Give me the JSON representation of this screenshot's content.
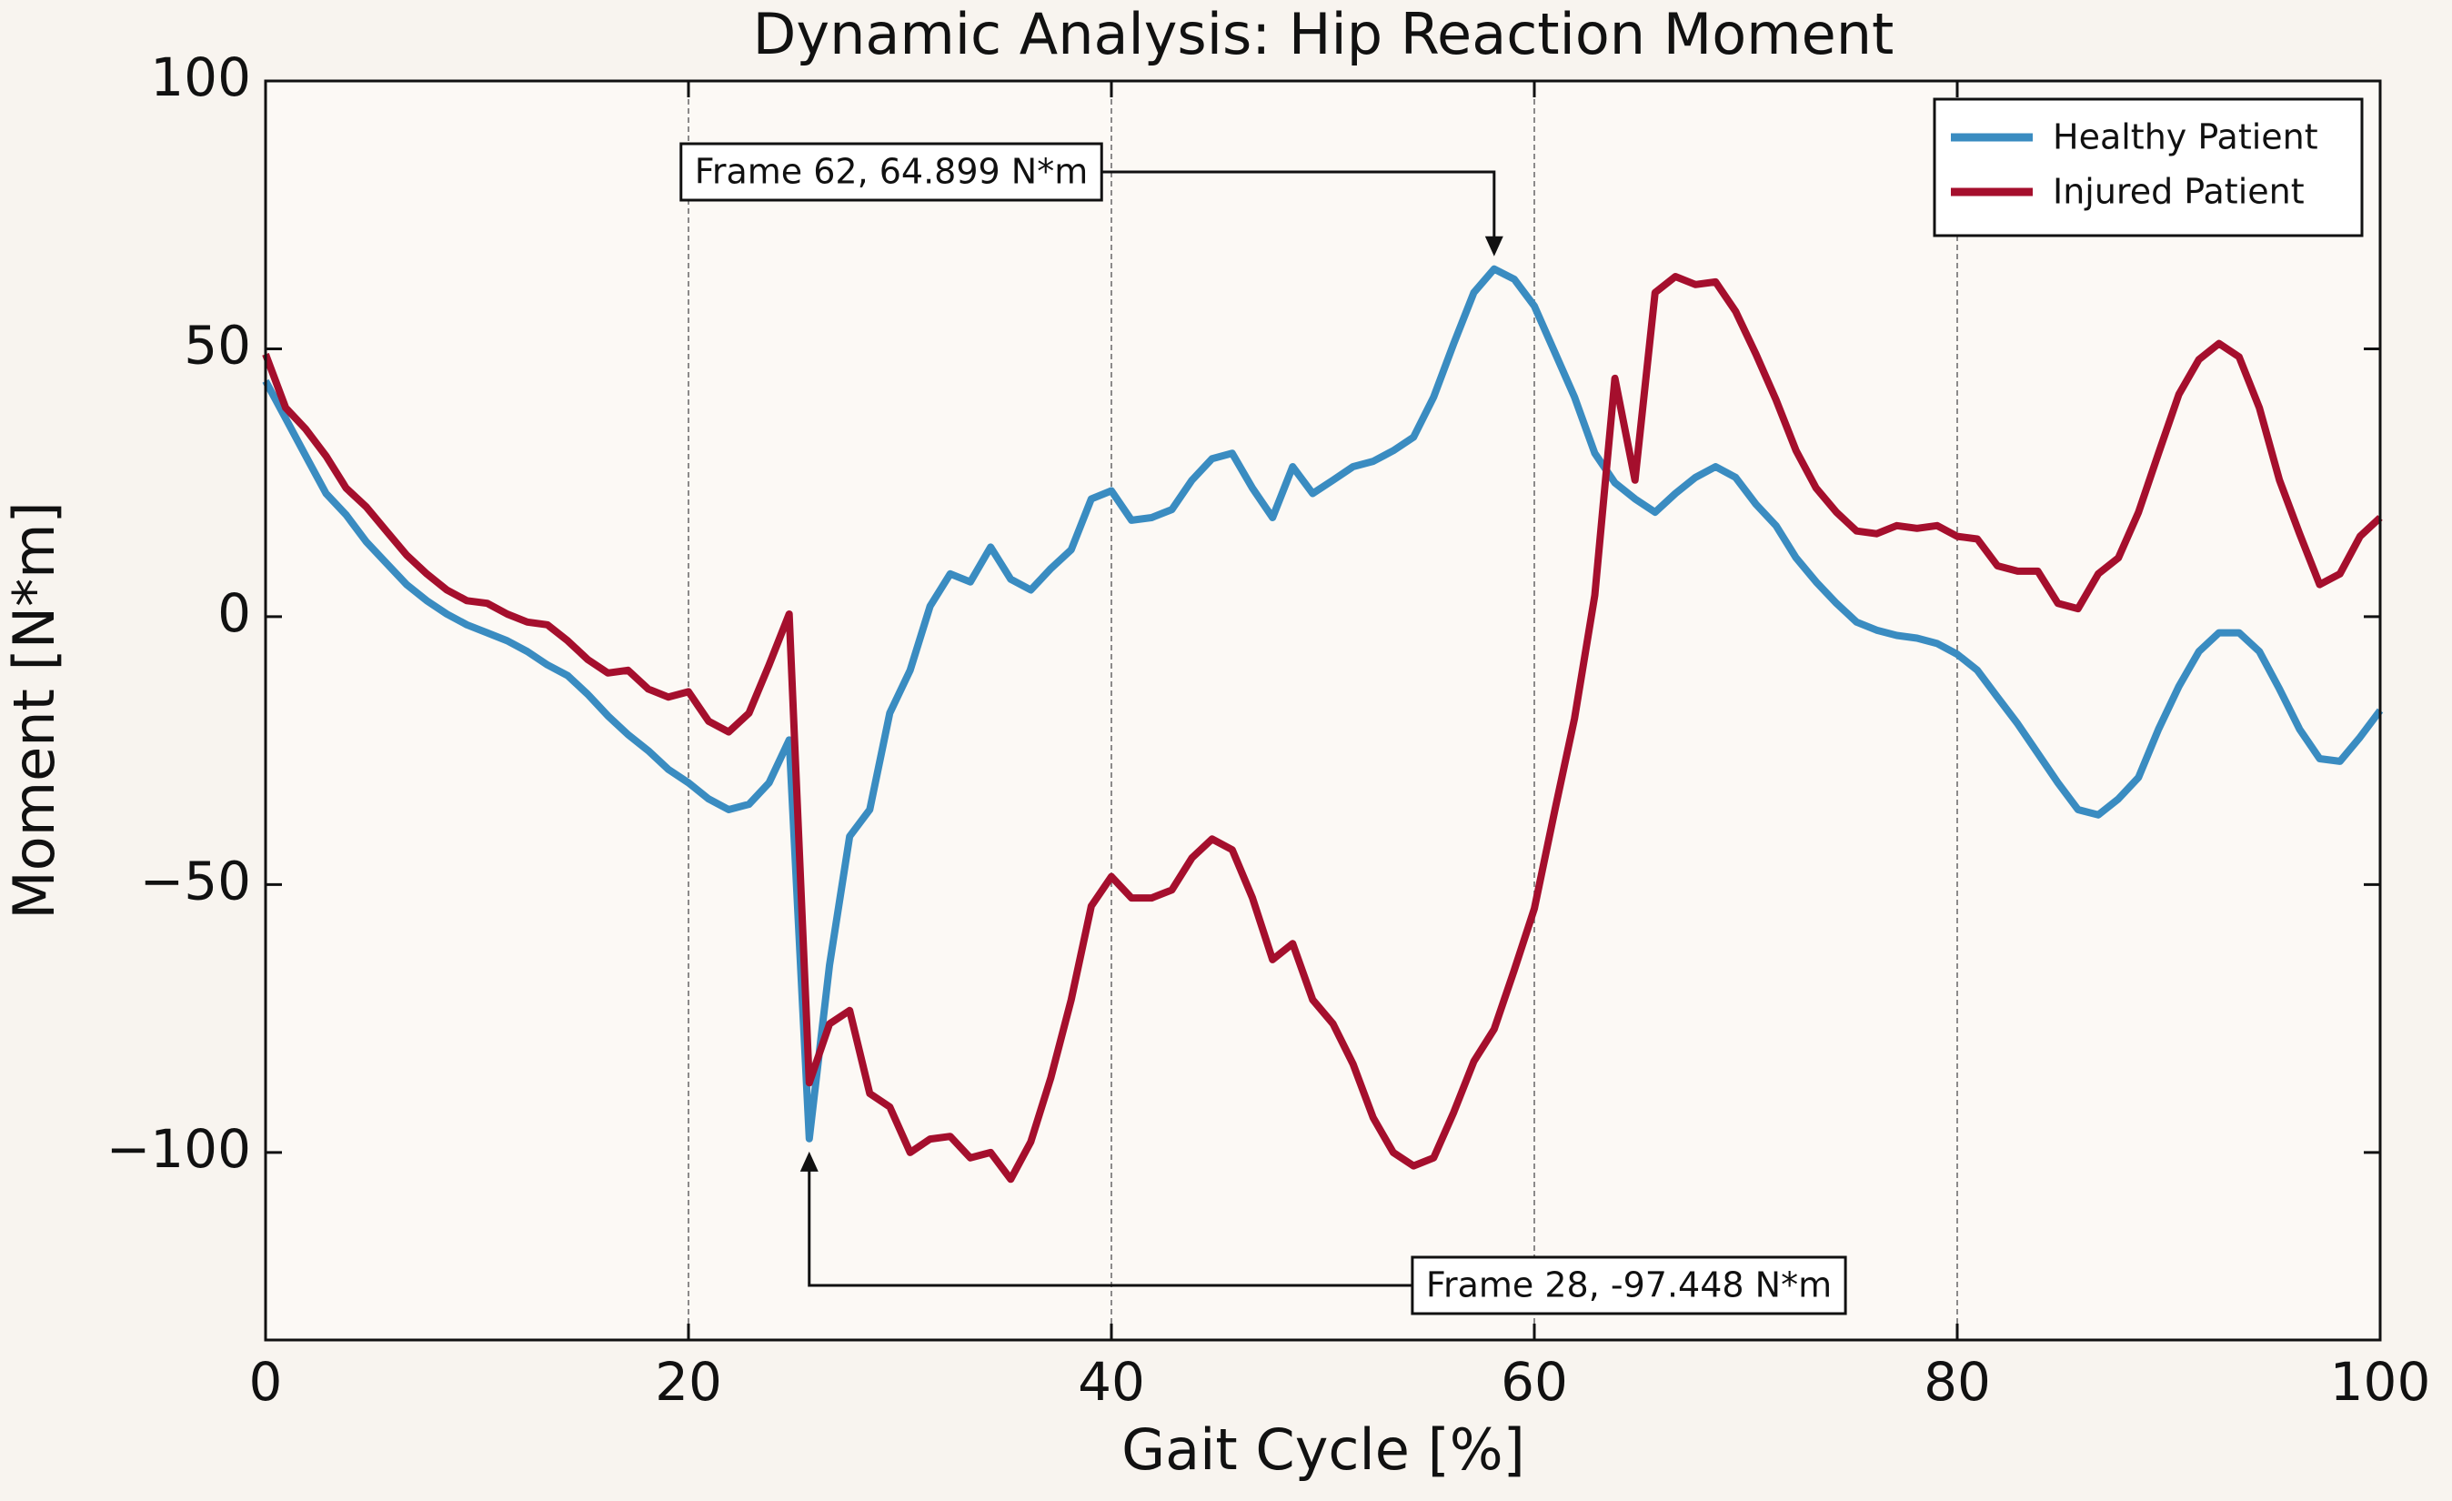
{
  "chart_data": {
    "type": "line",
    "title": "Dynamic Analysis: Hip Reaction Moment",
    "xlabel": "Gait Cycle [%]",
    "ylabel": "Moment [N*m]",
    "x": [
      0,
      0.95,
      1.9,
      2.86,
      3.81,
      4.76,
      5.71,
      6.67,
      7.62,
      8.57,
      9.52,
      10.48,
      11.43,
      12.38,
      13.33,
      14.29,
      15.24,
      16.19,
      17.14,
      18.1,
      19.05,
      20,
      20.95,
      21.9,
      22.86,
      23.81,
      24.76,
      25.71,
      26.67,
      27.62,
      28.57,
      29.52,
      30.48,
      31.43,
      32.38,
      33.33,
      34.29,
      35.24,
      36.19,
      37.14,
      38.1,
      39.05,
      40,
      40.95,
      41.9,
      42.86,
      43.81,
      44.76,
      45.71,
      46.67,
      47.62,
      48.57,
      49.52,
      50.48,
      51.43,
      52.38,
      53.33,
      54.29,
      55.24,
      56.19,
      57.14,
      58.1,
      59.05,
      60,
      60.95,
      61.9,
      62.86,
      63.81,
      64.76,
      65.71,
      66.67,
      67.62,
      68.57,
      69.52,
      70.48,
      71.43,
      72.38,
      73.33,
      74.29,
      75.24,
      76.19,
      77.14,
      78.1,
      79.05,
      80,
      80.95,
      81.9,
      82.86,
      83.81,
      84.76,
      85.71,
      86.67,
      87.62,
      88.57,
      89.52,
      90.48,
      91.43,
      92.38,
      93.33,
      94.29,
      95.24,
      96.19,
      97.14,
      98.1,
      99.05,
      100
    ],
    "series": [
      {
        "name": "Healthy Patient",
        "color": "#3a8cc1",
        "values": [
          44,
          37,
          30,
          23,
          19,
          14,
          10,
          6,
          3,
          0.5,
          -1.5,
          -3,
          -4.5,
          -6.5,
          -9,
          -11,
          -14.5,
          -18.5,
          -22,
          -25,
          -28.5,
          -31,
          -34,
          -36,
          -35,
          -31,
          -23,
          -97.448,
          -65,
          -41,
          -36,
          -18,
          -10,
          2,
          8,
          6.5,
          13,
          7,
          5,
          9,
          12.5,
          22,
          23.5,
          18,
          18.5,
          20,
          25.5,
          29.5,
          30.5,
          24,
          18.5,
          28,
          23,
          25.5,
          28,
          29,
          31,
          33.5,
          41,
          51,
          60.5,
          64.899,
          63,
          58,
          49.5,
          41,
          30.5,
          25,
          22,
          19.5,
          23,
          26,
          28,
          26,
          21,
          17,
          11,
          6.5,
          2.5,
          -1,
          -2.5,
          -3.5,
          -4,
          -5,
          -7,
          -10,
          -15,
          -20,
          -25.5,
          -31,
          -36,
          -37,
          -34,
          -30,
          -21,
          -13,
          -6.5,
          -3,
          -3,
          -6.5,
          -13.5,
          -21,
          -26.5,
          -27,
          -22.5,
          -17.5
        ]
      },
      {
        "name": "Injured Patient",
        "color": "#a50f2d",
        "values": [
          49,
          39,
          35,
          30,
          24,
          20.5,
          16,
          11.5,
          8,
          5,
          3,
          2.5,
          0.5,
          -1,
          -1.5,
          -4.5,
          -8,
          -10.5,
          -10,
          -13.5,
          -15,
          -14,
          -19.5,
          -21.5,
          -18,
          -9,
          0.5,
          -87,
          -76,
          -73.5,
          -89,
          -91.5,
          -100,
          -97.5,
          -97,
          -101,
          -100,
          -105,
          -98,
          -86,
          -71.5,
          -54,
          -48.5,
          -52.5,
          -52.5,
          -51,
          -45,
          -41.5,
          -43.5,
          -52.5,
          -64,
          -61,
          -71.5,
          -76,
          -83.5,
          -93.5,
          -100,
          -102.5,
          -101,
          -92.5,
          -83,
          -77,
          -66,
          -54.5,
          -36.5,
          -19,
          4,
          44.5,
          25.5,
          60.5,
          63.5,
          62,
          62.5,
          57,
          49,
          40.5,
          31,
          24,
          19.5,
          16,
          15.5,
          17,
          16.5,
          17,
          15,
          14.5,
          9.5,
          8.5,
          8.5,
          2.5,
          1.5,
          8,
          11,
          19.5,
          30.5,
          41.5,
          48,
          51,
          48.5,
          39,
          25.5,
          15.5,
          6,
          8,
          15,
          18.5
        ]
      }
    ],
    "xlim": [
      0,
      100
    ],
    "ylim": [
      -135,
      100
    ],
    "xticks": [
      0,
      20,
      40,
      60,
      80,
      100
    ],
    "yticks": [
      {
        "value": -100,
        "label": "−100"
      },
      {
        "value": -50,
        "label": "−50"
      },
      0,
      50,
      100
    ],
    "xgrid": true,
    "legend": "upper right",
    "annotations": [
      {
        "text": "Frame 62, 64.899 N*m",
        "x": 58.1,
        "y": 64.899
      },
      {
        "text": "Frame 28, -97.448 N*m",
        "x": 25.71,
        "y": -97.448
      }
    ]
  }
}
